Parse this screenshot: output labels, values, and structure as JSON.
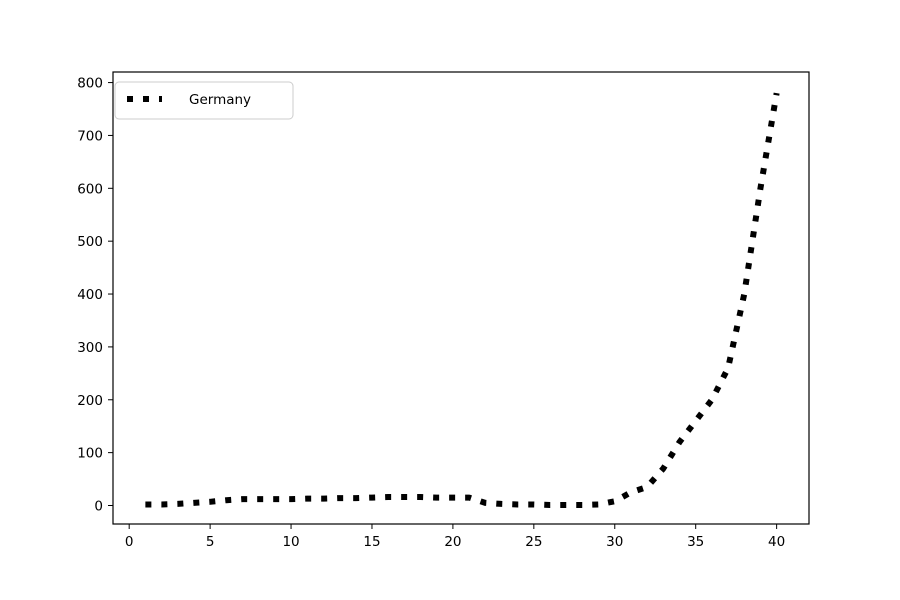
{
  "chart_data": {
    "type": "line",
    "title": "",
    "xlabel": "",
    "ylabel": "",
    "xlim": [
      -1,
      42
    ],
    "ylim": [
      -35,
      820
    ],
    "xticks": [
      0,
      5,
      10,
      15,
      20,
      25,
      30,
      35,
      40
    ],
    "yticks": [
      0,
      100,
      200,
      300,
      400,
      500,
      600,
      700,
      800
    ],
    "grid": false,
    "legend_position": "top-left",
    "series": [
      {
        "name": "Germany",
        "color": "#000000",
        "line_style": "dotted",
        "x": [
          1,
          2,
          3,
          4,
          5,
          6,
          7,
          8,
          9,
          10,
          11,
          12,
          13,
          14,
          15,
          16,
          17,
          18,
          19,
          20,
          21,
          22,
          23,
          24,
          25,
          26,
          27,
          28,
          29,
          30,
          31,
          32,
          33,
          34,
          35,
          36,
          37,
          38,
          39,
          40
        ],
        "y": [
          2,
          2,
          3,
          5,
          7,
          10,
          12,
          12,
          12,
          12,
          13,
          13,
          14,
          14,
          15,
          16,
          16,
          16,
          15,
          15,
          15,
          5,
          3,
          2,
          2,
          1,
          1,
          1,
          2,
          8,
          25,
          35,
          70,
          120,
          160,
          200,
          260,
          400,
          600,
          780
        ]
      }
    ]
  }
}
